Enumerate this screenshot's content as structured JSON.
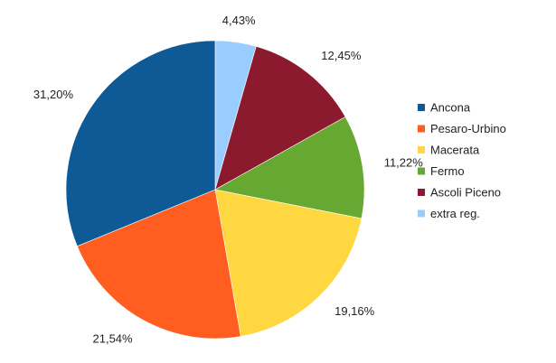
{
  "chart_data": {
    "type": "pie",
    "title": "",
    "legend_position": "right",
    "slices": [
      {
        "name": "extra reg.",
        "value": 4.43,
        "label": "4,43%",
        "color": "#99CCFF"
      },
      {
        "name": "Ascoli Piceno",
        "value": 12.45,
        "label": "12,45%",
        "color": "#8B1A2E"
      },
      {
        "name": "Fermo",
        "value": 11.22,
        "label": "11,22%",
        "color": "#66A832"
      },
      {
        "name": "Macerata",
        "value": 19.16,
        "label": "19,16%",
        "color": "#FFD740"
      },
      {
        "name": "Pesaro-Urbino",
        "value": 21.54,
        "label": "21,54%",
        "color": "#FF5E20"
      },
      {
        "name": "Ancona",
        "value": 31.2,
        "label": "31,20%",
        "color": "#0E5A97"
      }
    ],
    "legend_order": [
      "Ancona",
      "Pesaro-Urbino",
      "Macerata",
      "Fermo",
      "Ascoli Piceno",
      "extra reg."
    ]
  }
}
